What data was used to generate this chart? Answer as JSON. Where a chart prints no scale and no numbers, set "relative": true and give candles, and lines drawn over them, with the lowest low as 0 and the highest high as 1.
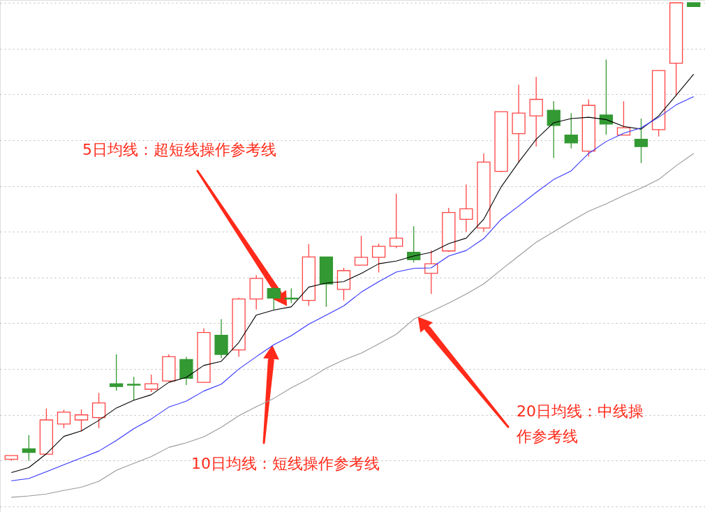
{
  "chart_data": {
    "type": "candlestick",
    "relative": true,
    "grid": true,
    "categories": [
      null,
      null,
      null,
      null,
      null,
      null,
      null,
      null,
      null,
      null,
      null,
      null,
      null,
      null,
      null,
      null,
      null,
      null,
      null,
      null,
      null,
      null,
      null,
      null,
      null,
      null,
      null,
      null,
      null,
      null,
      null,
      null,
      null,
      null,
      null,
      null,
      null,
      null,
      null,
      null
    ],
    "ohlc": [
      [
        0.003,
        0.011,
        0,
        0.011
      ],
      [
        0.026,
        0.056,
        0,
        0.018
      ],
      [
        0.014,
        0.114,
        0.014,
        0.089
      ],
      [
        0.08,
        0.111,
        0.071,
        0.106
      ],
      [
        0.089,
        0.112,
        0.064,
        0.1
      ],
      [
        0.094,
        0.148,
        0.071,
        0.126
      ],
      [
        0.168,
        0.232,
        0.153,
        0.162
      ],
      [
        0.167,
        0.183,
        0.132,
        0.165
      ],
      [
        0.156,
        0.188,
        0.15,
        0.168
      ],
      [
        0.174,
        0.232,
        0.174,
        0.227
      ],
      [
        0.221,
        0.227,
        0.165,
        0.18
      ],
      [
        0.171,
        0.289,
        0.17,
        0.28
      ],
      [
        0.274,
        0.309,
        0.224,
        0.232
      ],
      [
        0.242,
        0.356,
        0.227,
        0.353
      ],
      [
        0.353,
        0.405,
        0.33,
        0.398
      ],
      [
        0.376,
        0.379,
        0.33,
        0.355
      ],
      [
        0.355,
        0.376,
        0.344,
        0.353
      ],
      [
        0.35,
        0.473,
        0.338,
        0.445
      ],
      [
        0.445,
        0.445,
        0.336,
        0.386
      ],
      [
        0.374,
        0.421,
        0.35,
        0.415
      ],
      [
        0.427,
        0.491,
        0.427,
        0.444
      ],
      [
        0.444,
        0.474,
        0.411,
        0.468
      ],
      [
        0.468,
        0.583,
        0.464,
        0.486
      ],
      [
        0.455,
        0.512,
        0.433,
        0.439
      ],
      [
        0.409,
        0.459,
        0.364,
        0.43
      ],
      [
        0.458,
        0.552,
        0.456,
        0.542
      ],
      [
        0.527,
        0.603,
        0.5,
        0.55
      ],
      [
        0.508,
        0.671,
        0.5,
        0.652
      ],
      [
        0.632,
        0.762,
        0.63,
        0.762
      ],
      [
        0.714,
        0.821,
        0.652,
        0.759
      ],
      [
        0.753,
        0.838,
        0.686,
        0.789
      ],
      [
        0.765,
        0.785,
        0.661,
        0.732
      ],
      [
        0.711,
        0.759,
        0.682,
        0.694
      ],
      [
        0.676,
        0.789,
        0.664,
        0.776
      ],
      [
        0.755,
        0.876,
        0.712,
        0.735
      ],
      [
        0.711,
        0.785,
        0.711,
        0.727
      ],
      [
        0.702,
        0.747,
        0.65,
        0.686
      ],
      [
        0.723,
        0.852,
        0.708,
        0.852
      ],
      [
        0.868,
        1,
        0.798,
        1
      ],
      [
        1,
        1,
        0.992,
        0.992
      ]
    ],
    "colors": [
      "#ff4444",
      "#339933",
      "#ff4444",
      "#ff4444",
      "#ff4444",
      "#ff4444",
      "#339933",
      "#339933",
      "#ff4444",
      "#ff4444",
      "#339933",
      "#ff4444",
      "#339933",
      "#ff4444",
      "#ff4444",
      "#339933",
      "#339933",
      "#ff4444",
      "#339933",
      "#ff4444",
      "#ff4444",
      "#ff4444",
      "#ff4444",
      "#339933",
      "#ff4444",
      "#ff4444",
      "#ff4444",
      "#ff4444",
      "#ff4444",
      "#ff4444",
      "#ff4444",
      "#339933",
      "#339933",
      "#ff4444",
      "#339933",
      "#ff4444",
      "#339933",
      "#ff4444",
      "#ff4444",
      "#339933"
    ],
    "series": [
      {
        "type": "line",
        "color": "#000000",
        "values": [
          -0.026,
          -0.015,
          0.015,
          0.053,
          0.065,
          0.088,
          0.115,
          0.132,
          0.144,
          0.171,
          0.182,
          0.208,
          0.217,
          0.258,
          0.318,
          0.329,
          0.336,
          0.379,
          0.388,
          0.391,
          0.409,
          0.43,
          0.436,
          0.447,
          0.455,
          0.474,
          0.486,
          0.527,
          0.598,
          0.652,
          0.702,
          0.738,
          0.747,
          0.75,
          0.745,
          0.73,
          0.724,
          0.753,
          0.798,
          0.844
        ]
      },
      {
        "type": "line",
        "color": "#3333ff",
        "values": [
          -0.044,
          -0.039,
          -0.024,
          -0.009,
          0.006,
          0.021,
          0.044,
          0.07,
          0.091,
          0.117,
          0.13,
          0.152,
          0.167,
          0.2,
          0.227,
          0.253,
          0.273,
          0.298,
          0.318,
          0.338,
          0.368,
          0.391,
          0.412,
          0.42,
          0.421,
          0.447,
          0.459,
          0.485,
          0.527,
          0.556,
          0.586,
          0.614,
          0.633,
          0.671,
          0.697,
          0.715,
          0.727,
          0.75,
          0.777,
          0.795
        ]
      },
      {
        "type": "line",
        "color": "#999999",
        "values": [
          -0.08,
          -0.077,
          -0.073,
          -0.065,
          -0.058,
          -0.045,
          -0.021,
          -0.006,
          0.009,
          0.029,
          0.039,
          0.052,
          0.073,
          0.098,
          0.118,
          0.136,
          0.159,
          0.179,
          0.202,
          0.22,
          0.235,
          0.255,
          0.276,
          0.309,
          0.326,
          0.344,
          0.364,
          0.386,
          0.417,
          0.447,
          0.477,
          0.5,
          0.523,
          0.545,
          0.561,
          0.579,
          0.595,
          0.614,
          0.644,
          0.671
        ]
      }
    ],
    "annotations": [
      "5日均线：超短线操作参考线",
      "10日均线：短线操作参考线",
      "20日均线：中线操作参考线"
    ]
  }
}
